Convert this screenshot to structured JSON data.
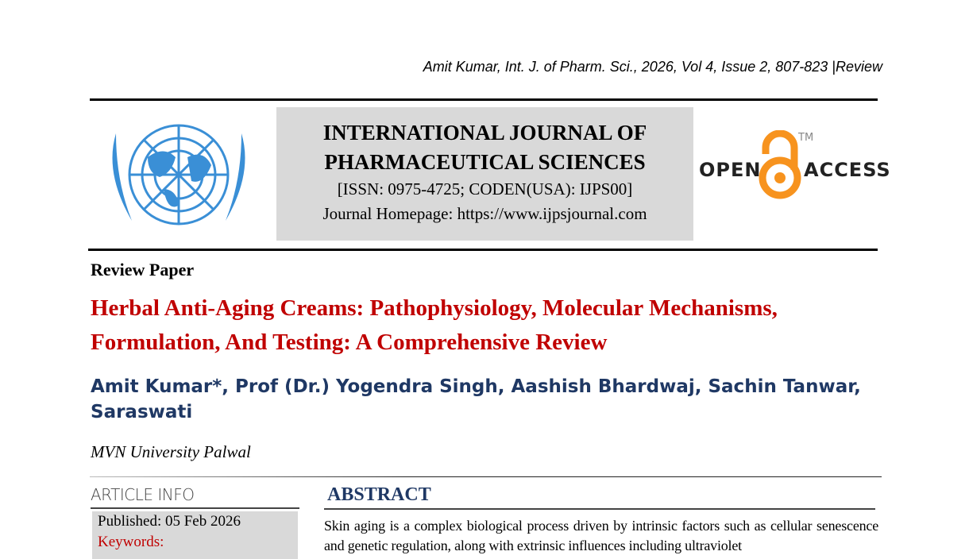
{
  "header": {
    "citation": "Amit Kumar, Int. J. of Pharm. Sci., 2026, Vol 4, Issue 2, 807-823 |Review"
  },
  "journal": {
    "title_line1": "INTERNATIONAL JOURNAL OF",
    "title_line2": "PHARMACEUTICAL SCIENCES",
    "issn": "[ISSN: 0975-4725; CODEN(USA): IJPS00]",
    "homepage": "Journal Homepage: https://www.ijpsjournal.com",
    "logo": "un-emblem-logo"
  },
  "open_access": {
    "word1": "OPEN",
    "word2": "ACCESS",
    "tm": "TM",
    "color": "#f7931e"
  },
  "paper": {
    "type": "Review Paper",
    "title": "Herbal Anti-Aging Creams: Pathophysiology, Molecular Mechanisms, Formulation, And Testing: A Comprehensive Review",
    "authors": "Amit Kumar*, Prof (Dr.) Yogendra Singh, Aashish Bhardwaj, Sachin Tanwar, Saraswati",
    "affiliation": "MVN University Palwal"
  },
  "article_info": {
    "heading": "ARTICLE INFO",
    "published": "Published:  05 Feb 2026",
    "keywords_label": "Keywords:"
  },
  "abstract": {
    "heading": "ABSTRACT",
    "text": "Skin aging is a complex biological process driven by intrinsic factors such as cellular senescence and genetic regulation, along with extrinsic influences including ultraviolet"
  },
  "colors": {
    "title_red": "#c00000",
    "navy": "#1f3864",
    "box_gray": "#d9d9d9"
  }
}
